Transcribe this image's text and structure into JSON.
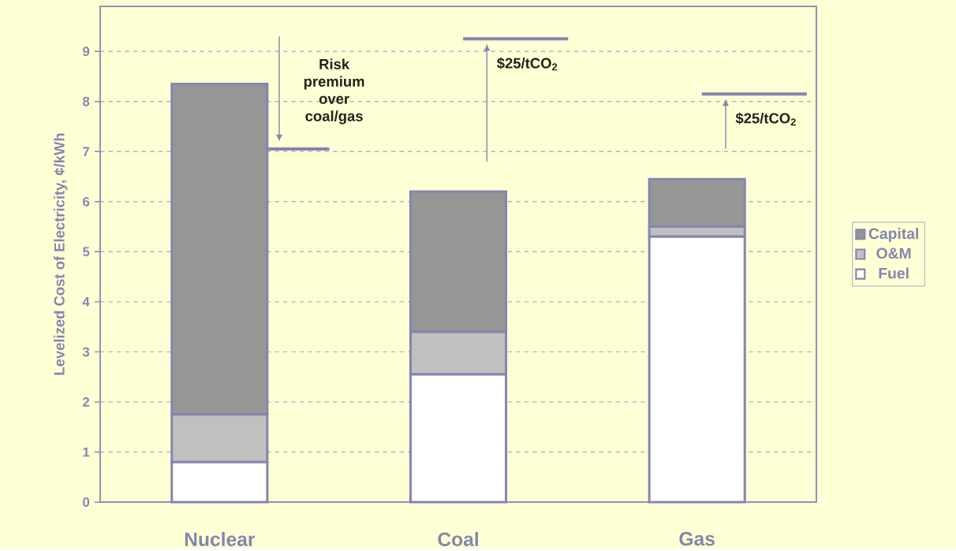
{
  "chart_data": {
    "type": "bar",
    "stacked": true,
    "categories": [
      "Nuclear",
      "Coal",
      "Gas"
    ],
    "series": [
      {
        "name": "Fuel",
        "color": "#ffffff",
        "values": [
          0.8,
          2.55,
          5.3
        ]
      },
      {
        "name": "O&M",
        "color": "#c0c0c0",
        "values": [
          0.95,
          0.85,
          0.2
        ]
      },
      {
        "name": "Capital",
        "color": "#969696",
        "values": [
          6.6,
          2.8,
          0.95
        ]
      }
    ],
    "ylim": [
      0,
      9.9
    ],
    "yticks": [
      0,
      1,
      2,
      3,
      4,
      5,
      6,
      7,
      8,
      9
    ],
    "ylabel": "Levelized Cost of Electricity, ¢/kWh",
    "grid": "y",
    "legend": "right",
    "ref_lines": [
      {
        "axis": "y",
        "value": 7.05,
        "label": "Risk premium over coal/gas",
        "color": "#8585b0"
      },
      {
        "axis": "y",
        "value": 9.25,
        "label": "$25/tCO$_{2}$",
        "color": "#8585b0"
      },
      {
        "axis": "y",
        "value": 8.15,
        "label": "$25/tCO$_{2}$",
        "color": "#8585b0"
      }
    ]
  }
}
